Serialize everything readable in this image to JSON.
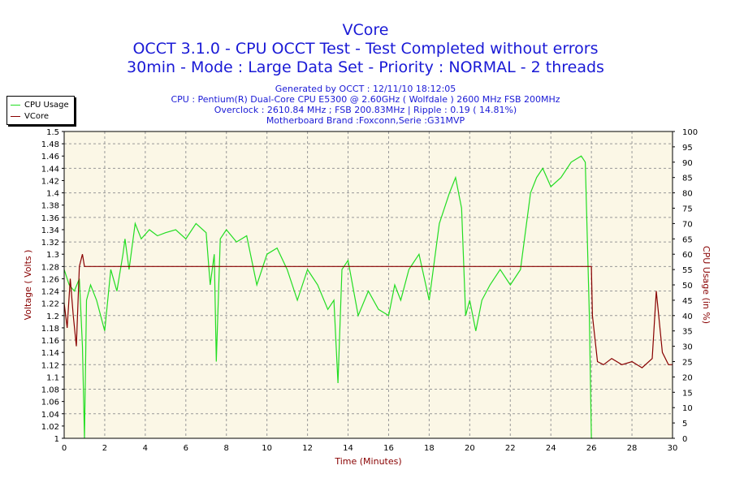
{
  "chart_data": {
    "type": "line",
    "title": "VCore",
    "subtitle_lines": [
      "OCCT 3.1.0 - CPU OCCT Test - Test Completed without errors",
      "30min - Mode : Large Data Set - Priority : NORMAL - 2 threads"
    ],
    "info_lines": [
      "Generated by OCCT : 12/11/10 18:12:05",
      "CPU : Pentium(R) Dual-Core CPU E5300 @ 2.60GHz ( Wolfdale ) 2600 MHz FSB 200MHz",
      "Overclock : 2610.84 MHz ; FSB 200.83MHz | Ripple : 0.19 ( 14.81%)",
      "Motherboard Brand :Foxconn,Serie :G31MVP"
    ],
    "xlabel": "Time (Minutes)",
    "ylabel": "Voltage ( Volts )",
    "y2label": "CPU Usage (in %)",
    "xlim": [
      0,
      30
    ],
    "ylim": [
      1.0,
      1.5
    ],
    "y2lim": [
      0,
      100
    ],
    "x_ticks": [
      "0",
      "2",
      "4",
      "6",
      "8",
      "10",
      "12",
      "14",
      "16",
      "18",
      "20",
      "22",
      "24",
      "26",
      "28",
      "30"
    ],
    "y_ticks": [
      "1",
      "1.02",
      "1.04",
      "1.06",
      "1.08",
      "1.1",
      "1.12",
      "1.14",
      "1.16",
      "1.18",
      "1.2",
      "1.22",
      "1.24",
      "1.26",
      "1.28",
      "1.3",
      "1.32",
      "1.34",
      "1.36",
      "1.38",
      "1.4",
      "1.42",
      "1.44",
      "1.46",
      "1.48",
      "1.5"
    ],
    "y2_ticks": [
      "0",
      "5",
      "10",
      "15",
      "20",
      "25",
      "30",
      "35",
      "40",
      "45",
      "50",
      "55",
      "60",
      "65",
      "70",
      "75",
      "80",
      "85",
      "90",
      "95",
      "100"
    ],
    "grid": true,
    "legend_position": "top-left",
    "colors": {
      "cpu_usage": "#22dd22",
      "vcore": "#880000",
      "axis_label": "#880000",
      "plot_bg": "#fbf7e6",
      "grid": "#999999"
    },
    "series": [
      {
        "name": "CPU Usage",
        "axis": "right",
        "x": [
          0,
          0.25,
          0.5,
          0.75,
          0.9,
          1.0,
          1.1,
          1.3,
          1.6,
          2.0,
          2.3,
          2.6,
          2.9,
          3.0,
          3.2,
          3.5,
          3.8,
          4.2,
          4.6,
          5.0,
          5.5,
          6.0,
          6.5,
          7.0,
          7.2,
          7.4,
          7.5,
          7.7,
          8.0,
          8.5,
          9.0,
          9.5,
          10.0,
          10.5,
          11.0,
          11.5,
          12.0,
          12.5,
          13.0,
          13.3,
          13.5,
          13.7,
          14.0,
          14.5,
          15.0,
          15.5,
          16.0,
          16.3,
          16.6,
          17.0,
          17.5,
          18.0,
          18.5,
          19.0,
          19.3,
          19.6,
          19.8,
          20.0,
          20.3,
          20.6,
          21.0,
          21.5,
          22.0,
          22.5,
          23.0,
          23.3,
          23.6,
          24.0,
          24.5,
          25.0,
          25.5,
          25.7,
          25.9,
          26.0,
          26.05
        ],
        "values": [
          55,
          50,
          48,
          52,
          30,
          0,
          45,
          50,
          45,
          35,
          55,
          48,
          60,
          65,
          55,
          70,
          65,
          68,
          66,
          67,
          68,
          65,
          70,
          67,
          50,
          60,
          25,
          65,
          68,
          64,
          66,
          50,
          60,
          62,
          55,
          45,
          55,
          50,
          42,
          45,
          18,
          55,
          58,
          40,
          48,
          42,
          40,
          50,
          45,
          55,
          60,
          45,
          70,
          80,
          85,
          75,
          40,
          45,
          35,
          45,
          50,
          55,
          50,
          55,
          80,
          85,
          88,
          82,
          85,
          90,
          92,
          90,
          40,
          0,
          0
        ]
      },
      {
        "name": "VCore",
        "axis": "left",
        "x": [
          0,
          0.15,
          0.3,
          0.45,
          0.6,
          0.75,
          0.9,
          1.0,
          1.1,
          1.5,
          5,
          10,
          12,
          15,
          19.5,
          20,
          24,
          25,
          25.5,
          26,
          26.05,
          26.3,
          26.6,
          27,
          27.5,
          28,
          28.5,
          29,
          29.2,
          29.5,
          29.8,
          30
        ],
        "values": [
          1.22,
          1.18,
          1.26,
          1.2,
          1.15,
          1.28,
          1.3,
          1.28,
          1.28,
          1.28,
          1.28,
          1.28,
          1.28,
          1.28,
          1.28,
          1.28,
          1.28,
          1.28,
          1.28,
          1.28,
          1.2,
          1.125,
          1.12,
          1.13,
          1.12,
          1.125,
          1.115,
          1.13,
          1.24,
          1.14,
          1.12,
          1.12
        ]
      }
    ]
  }
}
